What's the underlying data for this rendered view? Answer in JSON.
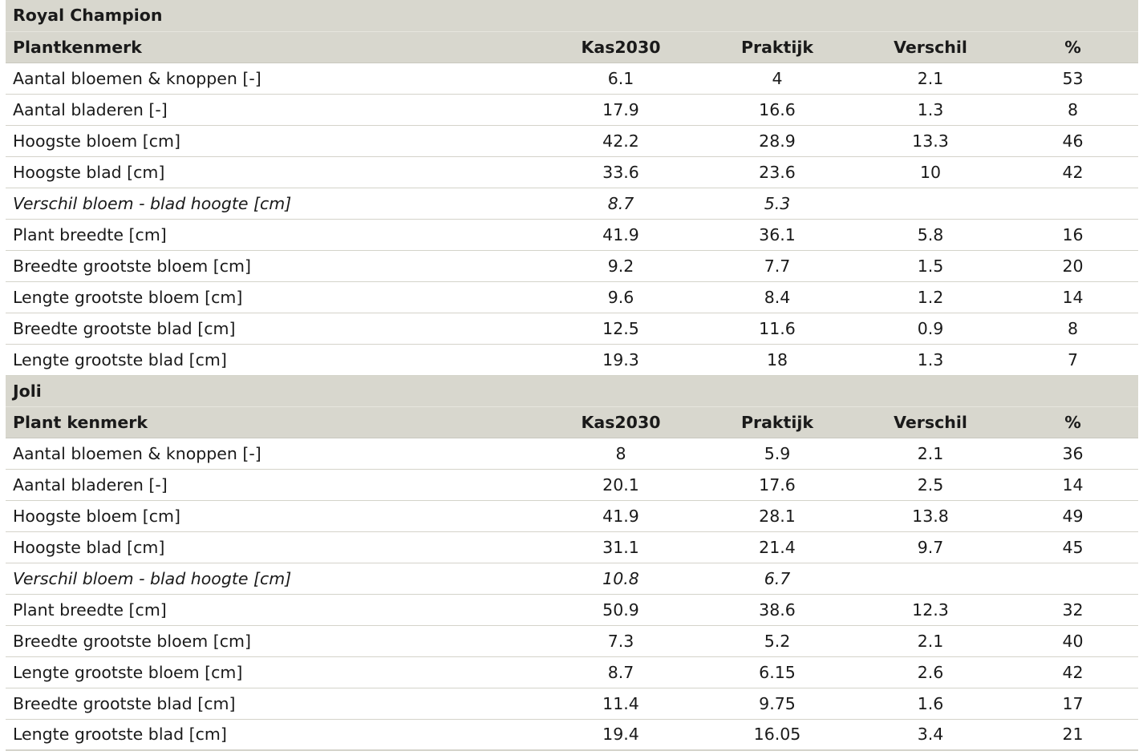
{
  "sections": [
    {
      "title": "Royal Champion",
      "headers": [
        "Plantkenmerk",
        "Kas2030",
        "Praktijk",
        "Verschil",
        "%"
      ],
      "rows": [
        {
          "label": "Aantal bloemen & knoppen [-]",
          "kas2030": "6.1",
          "praktijk": "4",
          "verschil": "2.1",
          "pct": "53"
        },
        {
          "label": "Aantal bladeren [-]",
          "kas2030": "17.9",
          "praktijk": "16.6",
          "verschil": "1.3",
          "pct": "8"
        },
        {
          "label": "Hoogste bloem [cm]",
          "kas2030": "42.2",
          "praktijk": "28.9",
          "verschil": "13.3",
          "pct": "46"
        },
        {
          "label": "Hoogste blad [cm]",
          "kas2030": "33.6",
          "praktijk": "23.6",
          "verschil": "10",
          "pct": "42"
        },
        {
          "label": "Verschil bloem - blad hoogte [cm]",
          "kas2030": "8.7",
          "praktijk": "5.3",
          "verschil": "",
          "pct": "",
          "italic": true
        },
        {
          "label": "Plant breedte [cm]",
          "kas2030": "41.9",
          "praktijk": "36.1",
          "verschil": "5.8",
          "pct": "16"
        },
        {
          "label": "Breedte grootste bloem [cm]",
          "kas2030": "9.2",
          "praktijk": "7.7",
          "verschil": "1.5",
          "pct": "20"
        },
        {
          "label": "Lengte grootste bloem [cm]",
          "kas2030": "9.6",
          "praktijk": "8.4",
          "verschil": "1.2",
          "pct": "14"
        },
        {
          "label": "Breedte grootste blad [cm]",
          "kas2030": "12.5",
          "praktijk": "11.6",
          "verschil": "0.9",
          "pct": "8"
        },
        {
          "label": "Lengte grootste blad [cm]",
          "kas2030": "19.3",
          "praktijk": "18",
          "verschil": "1.3",
          "pct": "7"
        }
      ]
    },
    {
      "title": "Joli",
      "headers": [
        "Plant kenmerk",
        "Kas2030",
        "Praktijk",
        "Verschil",
        "%"
      ],
      "rows": [
        {
          "label": "Aantal bloemen & knoppen [-]",
          "kas2030": "8",
          "praktijk": "5.9",
          "verschil": "2.1",
          "pct": "36"
        },
        {
          "label": "Aantal bladeren [-]",
          "kas2030": "20.1",
          "praktijk": "17.6",
          "verschil": "2.5",
          "pct": "14"
        },
        {
          "label": "Hoogste bloem [cm]",
          "kas2030": "41.9",
          "praktijk": "28.1",
          "verschil": "13.8",
          "pct": "49"
        },
        {
          "label": "Hoogste blad [cm]",
          "kas2030": "31.1",
          "praktijk": "21.4",
          "verschil": "9.7",
          "pct": "45"
        },
        {
          "label": "Verschil bloem - blad hoogte [cm]",
          "kas2030": "10.8",
          "praktijk": "6.7",
          "verschil": "",
          "pct": "",
          "italic": true
        },
        {
          "label": "Plant breedte [cm]",
          "kas2030": "50.9",
          "praktijk": "38.6",
          "verschil": "12.3",
          "pct": "32"
        },
        {
          "label": "Breedte grootste bloem [cm]",
          "kas2030": "7.3",
          "praktijk": "5.2",
          "verschil": "2.1",
          "pct": "40"
        },
        {
          "label": "Lengte grootste bloem [cm]",
          "kas2030": "8.7",
          "praktijk": "6.15",
          "verschil": "2.6",
          "pct": "42"
        },
        {
          "label": "Breedte grootste blad [cm]",
          "kas2030": "11.4",
          "praktijk": "9.75",
          "verschil": "1.6",
          "pct": "17"
        },
        {
          "label": "Lengte grootste blad [cm]",
          "kas2030": "19.4",
          "praktijk": "16.05",
          "verschil": "3.4",
          "pct": "21"
        }
      ]
    }
  ],
  "colors": {
    "header_bg": "#d8d7ce",
    "row_divider": "#d4d3ca",
    "text": "#1a1a1a"
  }
}
